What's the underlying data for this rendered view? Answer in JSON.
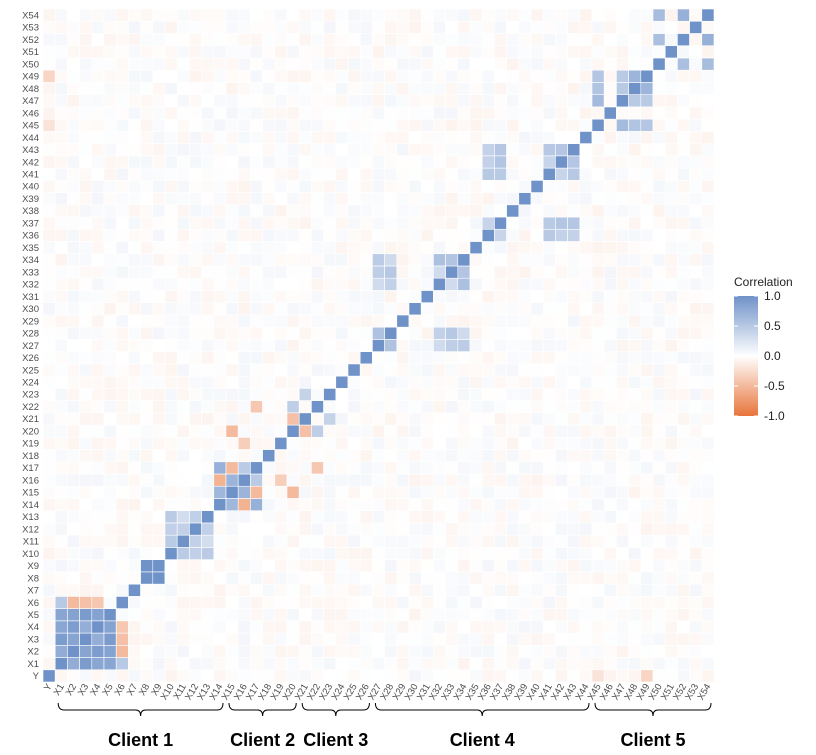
{
  "chart_data": {
    "type": "heatmap",
    "variables": [
      "Y",
      "X1",
      "X2",
      "X3",
      "X4",
      "X5",
      "X6",
      "X7",
      "X8",
      "X9",
      "X10",
      "X11",
      "X12",
      "X13",
      "X14",
      "X15",
      "X16",
      "X17",
      "X18",
      "X19",
      "X20",
      "X21",
      "X22",
      "X23",
      "X24",
      "X25",
      "X26",
      "X27",
      "X28",
      "X29",
      "X30",
      "X31",
      "X32",
      "X33",
      "X34",
      "X35",
      "X36",
      "X37",
      "X38",
      "X39",
      "X40",
      "X41",
      "X42",
      "X43",
      "X44",
      "X45",
      "X46",
      "X47",
      "X48",
      "X49",
      "X50",
      "X51",
      "X52",
      "X53",
      "X54"
    ],
    "value_range": [
      -1,
      1
    ],
    "legend": {
      "title": "Correlation",
      "ticks": [
        "1.0",
        "0.5",
        "0.0",
        "-0.5",
        "-1.0"
      ],
      "tick_values": [
        1,
        0.5,
        0,
        -0.5,
        -1
      ],
      "placement": "right"
    },
    "colors": {
      "positive": "#6f92c9",
      "neutral": "#ffffff",
      "negative": "#e8743b"
    },
    "groups": [
      {
        "label": "Client 1",
        "start": "X1",
        "end": "X14"
      },
      {
        "label": "Client 2",
        "start": "X15",
        "end": "X20"
      },
      {
        "label": "Client 3",
        "start": "X21",
        "end": "X26"
      },
      {
        "label": "Client 4",
        "start": "X27",
        "end": "X44"
      },
      {
        "label": "Client 5",
        "start": "X45",
        "end": "X54"
      }
    ],
    "notable_blocks": [
      {
        "vars": [
          "X1",
          "X2",
          "X3",
          "X4",
          "X5"
        ],
        "value": 0.8
      },
      {
        "vars": [
          "X8",
          "X9"
        ],
        "value": 0.95
      },
      {
        "vars": [
          "X10",
          "X11",
          "X12",
          "X13"
        ],
        "value": 0.4
      },
      {
        "vars": [
          "X14",
          "X15",
          "X16",
          "X17"
        ],
        "value": 0.6
      },
      {
        "vars": [
          "X27",
          "X28",
          "X32",
          "X33",
          "X34"
        ],
        "value": 0.45
      },
      {
        "vars": [
          "X36",
          "X37",
          "X41",
          "X42",
          "X43"
        ],
        "value": 0.5
      },
      {
        "vars": [
          "X45",
          "X47",
          "X48",
          "X49"
        ],
        "value": 0.6
      },
      {
        "vars": [
          "X50",
          "X52",
          "X54"
        ],
        "value": 0.65
      }
    ]
  }
}
